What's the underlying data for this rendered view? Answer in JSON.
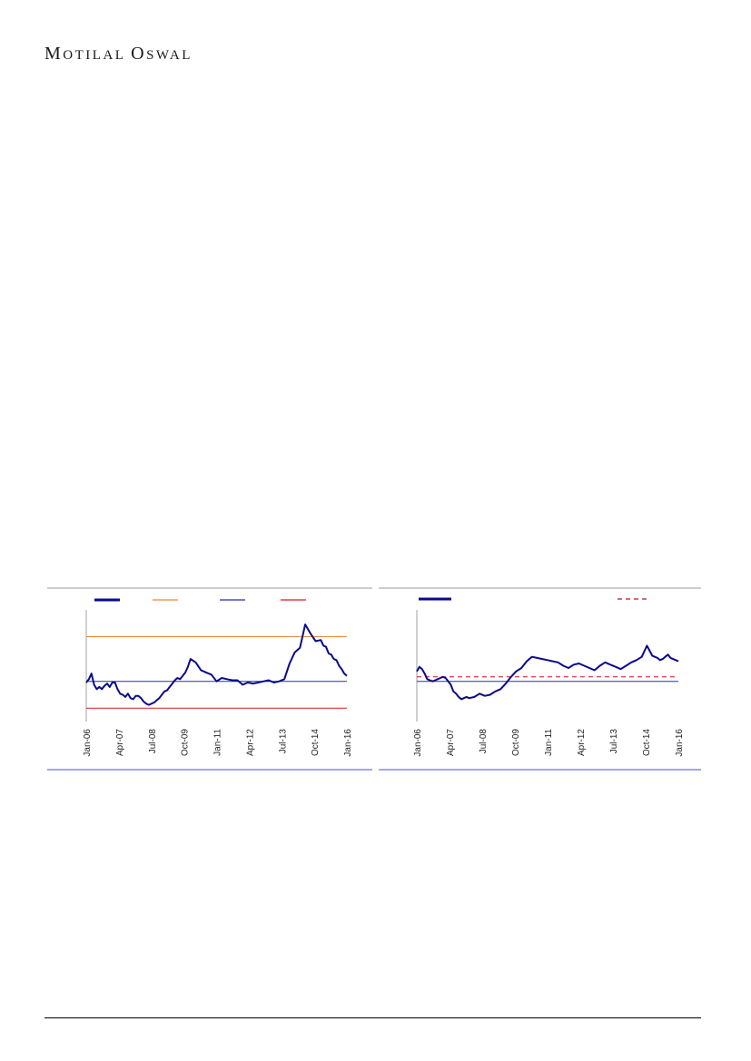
{
  "header": {
    "brand_first_initial": "M",
    "brand_first_rest": "OTILAL",
    "brand_second_initial": "O",
    "brand_second_rest": "SWAL"
  },
  "colors": {
    "series": "#0a0a8c",
    "upper_band": "#e8893a",
    "mean_line": "#2b2bb8",
    "lower_band": "#e01818",
    "frame_top": "#9a9a9a",
    "frame_bottom": "#8a8ae0",
    "average_dashed": "#cc1111"
  },
  "chart_data": [
    {
      "type": "line",
      "x_tick_labels": [
        "Jan-06",
        "Apr-07",
        "Jul-08",
        "Oct-09",
        "Jan-11",
        "Apr-12",
        "Jul-13",
        "Oct-14",
        "Jan-16"
      ],
      "x_range": [
        2006.0,
        2016.0
      ],
      "y_range": [
        0,
        100
      ],
      "legend": {
        "placement": "top",
        "entries": [
          "",
          "",
          "",
          ""
        ]
      },
      "series": [
        {
          "x": [
            2006.0,
            2006.1,
            2006.2,
            2006.3,
            2006.4,
            2006.5,
            2006.6,
            2006.7,
            2006.8,
            2006.9,
            2007.0,
            2007.1,
            2007.2,
            2007.3,
            2007.4,
            2007.5,
            2007.6,
            2007.7,
            2007.8,
            2007.9,
            2008.0,
            2008.1,
            2008.2,
            2008.3,
            2008.4,
            2008.5,
            2008.6,
            2008.7,
            2008.8,
            2008.9,
            2009.0,
            2009.1,
            2009.2,
            2009.3,
            2009.4,
            2009.5,
            2009.6,
            2009.7,
            2009.8,
            2009.9,
            2010.0,
            2010.2,
            2010.4,
            2010.6,
            2010.8,
            2011.0,
            2011.2,
            2011.4,
            2011.6,
            2011.8,
            2012.0,
            2012.2,
            2012.4,
            2012.6,
            2012.8,
            2013.0,
            2013.2,
            2013.4,
            2013.6,
            2013.8,
            2014.0,
            2014.2,
            2014.4,
            2014.6,
            2014.8,
            2015.0,
            2015.1,
            2015.2,
            2015.3,
            2015.4,
            2015.5,
            2015.6,
            2015.7,
            2015.8,
            2015.9,
            2016.0
          ],
          "values": [
            35,
            38,
            43,
            33,
            29,
            31,
            29,
            32,
            34,
            31,
            35,
            35,
            29,
            25,
            24,
            22,
            25,
            21,
            20,
            23,
            23,
            21,
            18,
            16,
            15,
            16,
            17,
            19,
            21,
            24,
            27,
            28,
            31,
            34,
            37,
            39,
            38,
            41,
            44,
            49,
            56,
            53,
            46,
            44,
            42,
            36,
            39,
            38,
            37,
            37,
            33,
            35,
            34,
            35,
            36,
            37,
            35,
            36,
            38,
            52,
            62,
            66,
            87,
            79,
            72,
            73,
            68,
            67,
            61,
            60,
            56,
            55,
            50,
            47,
            43,
            41
          ]
        }
      ],
      "reference_lines": [
        {
          "label": "",
          "value": 76
        },
        {
          "label": "",
          "value": 36
        },
        {
          "label": "",
          "value": 12
        }
      ]
    },
    {
      "type": "line",
      "x_tick_labels": [
        "Jan-06",
        "Apr-07",
        "Jul-08",
        "Oct-09",
        "Jan-11",
        "Apr-12",
        "Jul-13",
        "Oct-14",
        "Jan-16"
      ],
      "x_range": [
        2006.0,
        2016.0
      ],
      "y_range": [
        0,
        100
      ],
      "legend": {
        "placement": "top",
        "entries": [
          "",
          ""
        ]
      },
      "series": [
        {
          "x": [
            2006.0,
            2006.1,
            2006.2,
            2006.3,
            2006.4,
            2006.5,
            2006.6,
            2006.7,
            2006.8,
            2006.9,
            2007.0,
            2007.1,
            2007.2,
            2007.3,
            2007.4,
            2007.5,
            2007.6,
            2007.7,
            2007.8,
            2007.9,
            2008.0,
            2008.2,
            2008.4,
            2008.6,
            2008.8,
            2009.0,
            2009.2,
            2009.4,
            2009.6,
            2009.8,
            2010.0,
            2010.2,
            2010.4,
            2010.6,
            2010.8,
            2011.0,
            2011.2,
            2011.4,
            2011.6,
            2011.8,
            2012.0,
            2012.2,
            2012.4,
            2012.6,
            2012.8,
            2013.0,
            2013.2,
            2013.4,
            2013.6,
            2013.8,
            2014.0,
            2014.2,
            2014.4,
            2014.6,
            2014.8,
            2015.0,
            2015.1,
            2015.2,
            2015.3,
            2015.4,
            2015.5,
            2015.6,
            2015.7,
            2015.8,
            2015.9,
            2016.0
          ],
          "values": [
            45,
            49,
            47,
            43,
            38,
            37,
            36,
            37,
            38,
            39,
            40,
            39,
            36,
            33,
            27,
            25,
            22,
            20,
            21,
            22,
            21,
            22,
            25,
            23,
            24,
            27,
            29,
            34,
            40,
            45,
            48,
            54,
            58,
            57,
            56,
            55,
            54,
            53,
            50,
            48,
            51,
            52,
            50,
            48,
            46,
            50,
            53,
            51,
            49,
            47,
            50,
            53,
            55,
            58,
            68,
            59,
            58,
            57,
            55,
            56,
            58,
            60,
            57,
            56,
            55,
            54
          ]
        }
      ],
      "reference_lines": [
        {
          "label": "",
          "value": 40,
          "style": "dashed"
        },
        {
          "label": "",
          "value": 36,
          "style": "solid"
        }
      ]
    }
  ]
}
